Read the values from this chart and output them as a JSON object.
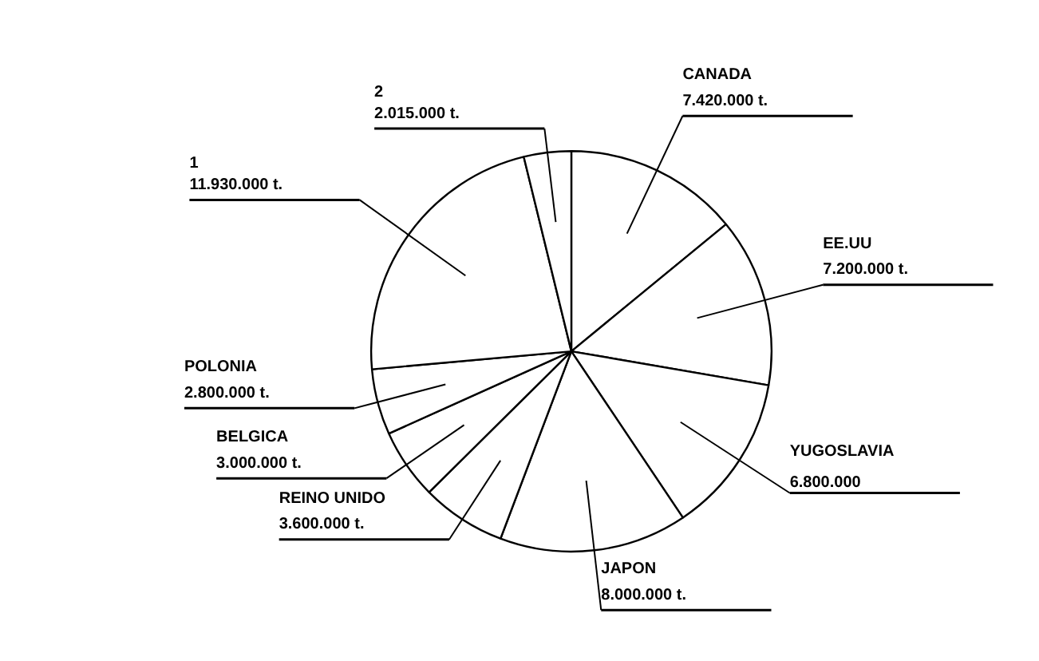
{
  "chart_data": {
    "type": "pie",
    "categories": [
      "CANADA",
      "EE.UU",
      "YUGOSLAVIA",
      "JAPON",
      "REINO UNIDO",
      "BELGICA",
      "POLONIA",
      "1",
      "2"
    ],
    "values": [
      7420000,
      7200000,
      6800000,
      8000000,
      3600000,
      3000000,
      2800000,
      11930000,
      2015000
    ],
    "value_labels": [
      "7.420.000 t.",
      "7.200.000 t.",
      "6.800.000",
      "8.000.000 t.",
      "3.600.000 t.",
      "3.000.000 t.",
      "2.800.000 t.",
      "11.930.000 t.",
      "2.015.000 t."
    ],
    "colors": [
      "#ffffff",
      "#ffffff",
      "#ffffff",
      "#ffffff",
      "#ffffff",
      "#ffffff",
      "#ffffff",
      "#ffffff",
      "#ffffff"
    ]
  }
}
